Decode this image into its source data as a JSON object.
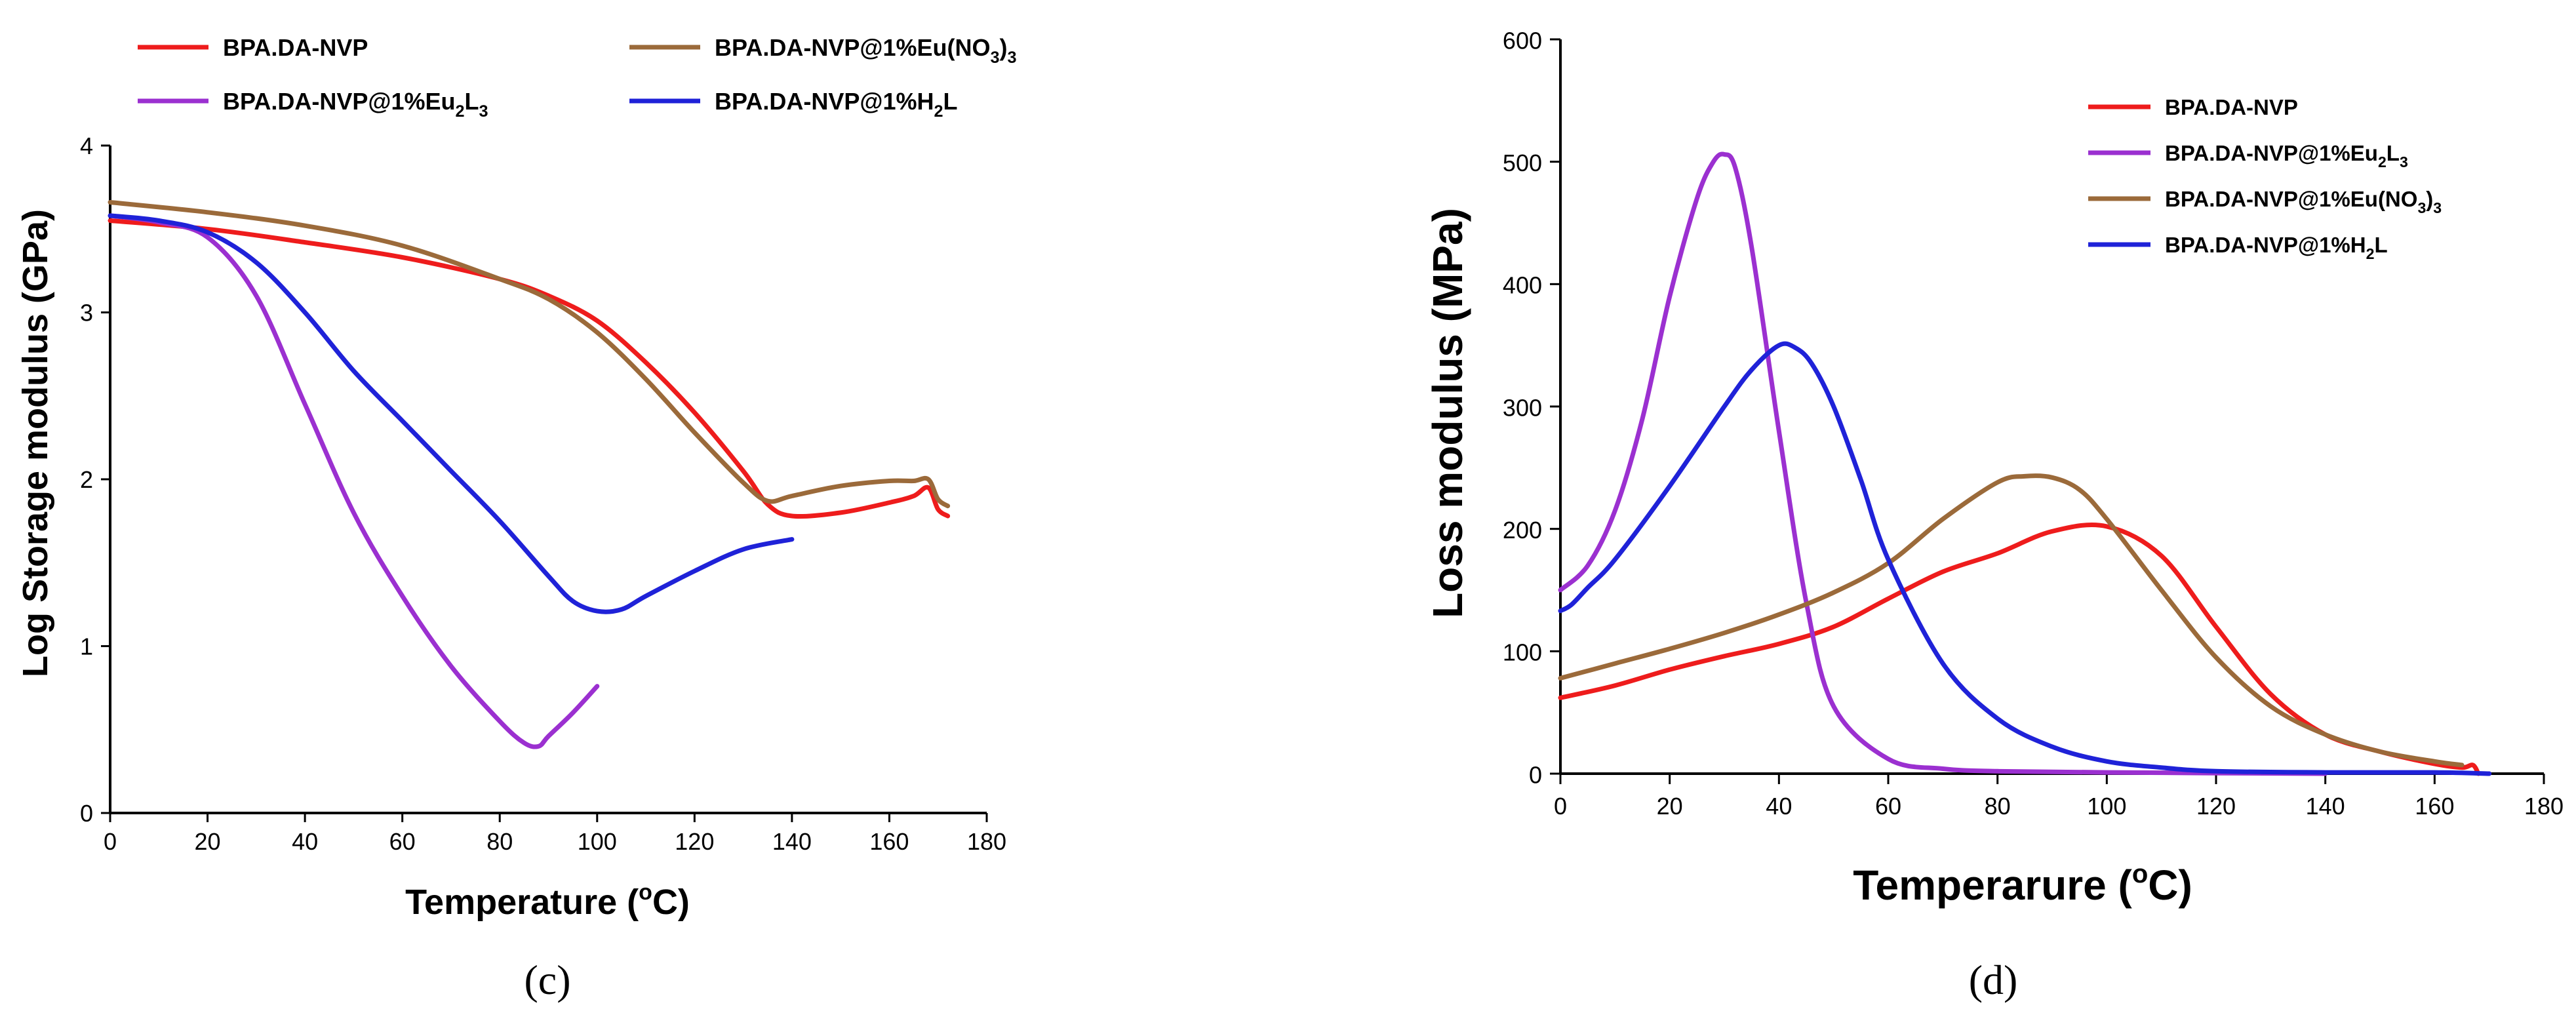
{
  "chart_data": [
    {
      "type": "line",
      "panel_label": "(c)",
      "xlabel": "Temperature (",
      "xlabel_unit": "o",
      "xlabel_end": "C)",
      "ylabel": "Log Storage modulus (GPa)",
      "xlim": [
        0,
        180
      ],
      "ylim": [
        0,
        4
      ],
      "xticks": [
        "0",
        "20",
        "40",
        "60",
        "80",
        "100",
        "120",
        "140",
        "160",
        "180"
      ],
      "yticks": [
        "0",
        "1",
        "2",
        "3",
        "4"
      ],
      "legend_position": "top",
      "series": [
        {
          "name": "BPA.DA-NVP",
          "legend": {
            "base": "BPA.DA-NVP",
            "sub": "",
            "tail": "",
            "sub2": ""
          },
          "color": "#ee1c1c",
          "x": [
            0,
            20,
            40,
            60,
            80,
            90,
            100,
            110,
            120,
            130,
            135,
            140,
            150,
            160,
            165,
            168,
            170,
            172
          ],
          "y": [
            3.55,
            3.5,
            3.42,
            3.33,
            3.2,
            3.1,
            2.95,
            2.7,
            2.4,
            2.05,
            1.85,
            1.78,
            1.8,
            1.86,
            1.9,
            1.95,
            1.82,
            1.78
          ]
        },
        {
          "name": "BPA.DA-NVP@1%Eu(NO3)3",
          "legend": {
            "base": "BPA.DA-NVP@1%Eu(NO",
            "sub": "3",
            "tail": ")",
            "sub2": "3"
          },
          "color": "#9b6a3a",
          "x": [
            0,
            20,
            40,
            60,
            80,
            90,
            100,
            110,
            120,
            130,
            135,
            140,
            150,
            160,
            165,
            168,
            170,
            172
          ],
          "y": [
            3.66,
            3.6,
            3.52,
            3.4,
            3.2,
            3.08,
            2.88,
            2.6,
            2.28,
            1.98,
            1.87,
            1.9,
            1.96,
            1.99,
            1.99,
            2.0,
            1.88,
            1.84
          ]
        },
        {
          "name": "BPA.DA-NVP@1%Eu2L3",
          "legend": {
            "base": "BPA.DA-NVP@1%Eu",
            "sub": "2",
            "tail": "L",
            "sub2": "3"
          },
          "color": "#9b30d0",
          "x": [
            0,
            10,
            20,
            30,
            40,
            50,
            60,
            70,
            80,
            85,
            88,
            90,
            95,
            100
          ],
          "y": [
            3.58,
            3.54,
            3.45,
            3.1,
            2.45,
            1.8,
            1.3,
            0.88,
            0.55,
            0.42,
            0.4,
            0.46,
            0.6,
            0.76
          ]
        },
        {
          "name": "BPA.DA-NVP@1%H2L",
          "legend": {
            "base": "BPA.DA-NVP@1%H",
            "sub": "2",
            "tail": "L",
            "sub2": ""
          },
          "color": "#1f22d8",
          "x": [
            0,
            10,
            20,
            30,
            40,
            50,
            60,
            70,
            80,
            90,
            95,
            100,
            105,
            110,
            120,
            130,
            140
          ],
          "y": [
            3.58,
            3.55,
            3.48,
            3.3,
            3.0,
            2.65,
            2.35,
            2.05,
            1.75,
            1.42,
            1.27,
            1.21,
            1.22,
            1.3,
            1.45,
            1.58,
            1.64
          ]
        }
      ]
    },
    {
      "type": "line",
      "panel_label": "(d)",
      "xlabel": "Temperarure (",
      "xlabel_unit": "o",
      "xlabel_end": "C)",
      "ylabel": "Loss modulus (MPa)",
      "xlim": [
        0,
        180
      ],
      "ylim": [
        0,
        600
      ],
      "xticks": [
        "0",
        "20",
        "40",
        "60",
        "80",
        "100",
        "120",
        "140",
        "160",
        "180"
      ],
      "yticks": [
        "0",
        "100",
        "200",
        "300",
        "400",
        "500",
        "600"
      ],
      "legend_position": "upper-right",
      "series": [
        {
          "name": "BPA.DA-NVP",
          "legend": {
            "base": "BPA.DA-NVP",
            "sub": "",
            "tail": "",
            "sub2": ""
          },
          "color": "#ee1c1c",
          "x": [
            0,
            10,
            20,
            30,
            40,
            50,
            60,
            70,
            80,
            90,
            100,
            110,
            120,
            130,
            140,
            150,
            160,
            165,
            167,
            168
          ],
          "y": [
            62,
            72,
            85,
            96,
            106,
            120,
            143,
            165,
            180,
            198,
            202,
            178,
            120,
            65,
            32,
            18,
            8,
            5,
            7,
            0
          ]
        },
        {
          "name": "BPA.DA-NVP@1%Eu2L3",
          "legend": {
            "base": "BPA.DA-NVP@1%Eu",
            "sub": "2",
            "tail": "L",
            "sub2": "3"
          },
          "color": "#9b30d0",
          "x": [
            0,
            5,
            10,
            15,
            20,
            25,
            28,
            30,
            32,
            35,
            40,
            45,
            50,
            60,
            70,
            80,
            100,
            140
          ],
          "y": [
            150,
            170,
            215,
            290,
            390,
            470,
            500,
            506,
            495,
            430,
            280,
            140,
            55,
            12,
            4,
            2,
            1,
            0
          ]
        },
        {
          "name": "BPA.DA-NVP@1%Eu(NO3)3",
          "legend": {
            "base": "BPA.DA-NVP@1%Eu(NO",
            "sub": "3",
            "tail": ")",
            "sub2": "3"
          },
          "color": "#9b6a3a",
          "x": [
            0,
            10,
            20,
            30,
            40,
            50,
            60,
            70,
            80,
            85,
            90,
            95,
            100,
            110,
            120,
            130,
            140,
            150,
            160,
            165
          ],
          "y": [
            78,
            90,
            102,
            115,
            130,
            148,
            172,
            208,
            238,
            243,
            242,
            232,
            208,
            150,
            95,
            55,
            32,
            18,
            10,
            7
          ]
        },
        {
          "name": "BPA.DA-NVP@1%H2L",
          "legend": {
            "base": "BPA.DA-NVP@1%H",
            "sub": "2",
            "tail": "L",
            "sub2": ""
          },
          "color": "#1f22d8",
          "x": [
            0,
            2,
            5,
            10,
            20,
            30,
            35,
            40,
            43,
            46,
            50,
            55,
            60,
            70,
            80,
            90,
            100,
            110,
            120,
            140,
            160,
            170
          ],
          "y": [
            133,
            138,
            152,
            175,
            235,
            300,
            330,
            350,
            348,
            335,
            300,
            240,
            175,
            90,
            45,
            22,
            10,
            5,
            2,
            1,
            1,
            0
          ]
        }
      ]
    }
  ]
}
